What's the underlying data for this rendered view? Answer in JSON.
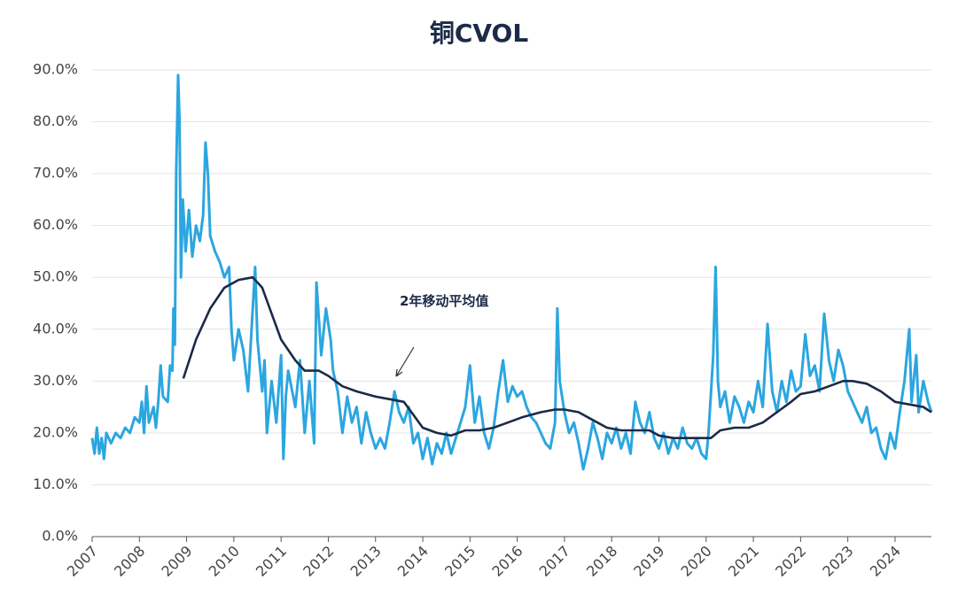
{
  "chart_data": {
    "type": "line",
    "title": "铜CVOL",
    "xlim": [
      2007,
      2024.77
    ],
    "xticks": [
      2007,
      2008,
      2009,
      2010,
      2011,
      2012,
      2013,
      2014,
      2015,
      2016,
      2017,
      2018,
      2019,
      2020,
      2021,
      2022,
      2023,
      2024
    ],
    "ylim": [
      0,
      90
    ],
    "yticks": [
      {
        "value": 0,
        "label": "0.0%"
      },
      {
        "value": 10,
        "label": "10.0%"
      },
      {
        "value": 20,
        "label": "20.0%"
      },
      {
        "value": 30,
        "label": "30.0%"
      },
      {
        "value": 40,
        "label": "40.0%"
      },
      {
        "value": 50,
        "label": "50.0%"
      },
      {
        "value": 60,
        "label": "60.0%"
      },
      {
        "value": 70,
        "label": "70.0%"
      },
      {
        "value": 80,
        "label": "80.0%"
      },
      {
        "value": 90,
        "label": "90.0%"
      }
    ],
    "grid": true,
    "annotation": "2年移动平均值",
    "series": [
      {
        "color": "#2ba6e0",
        "x": [
          2007.0,
          2007.05,
          2007.1,
          2007.15,
          2007.2,
          2007.25,
          2007.3,
          2007.4,
          2007.5,
          2007.6,
          2007.7,
          2007.8,
          2007.9,
          2008.0,
          2008.05,
          2008.1,
          2008.15,
          2008.2,
          2008.3,
          2008.35,
          2008.4,
          2008.45,
          2008.5,
          2008.6,
          2008.65,
          2008.7,
          2008.72,
          2008.75,
          2008.78,
          2008.82,
          2008.85,
          2008.88,
          2008.92,
          2008.98,
          2009.05,
          2009.12,
          2009.2,
          2009.28,
          2009.35,
          2009.4,
          2009.45,
          2009.5,
          2009.6,
          2009.7,
          2009.8,
          2009.9,
          2009.95,
          2010.0,
          2010.1,
          2010.2,
          2010.3,
          2010.4,
          2010.45,
          2010.5,
          2010.6,
          2010.65,
          2010.7,
          2010.8,
          2010.9,
          2011.0,
          2011.05,
          2011.1,
          2011.15,
          2011.3,
          2011.4,
          2011.5,
          2011.6,
          2011.7,
          2011.75,
          2011.85,
          2011.95,
          2012.05,
          2012.1,
          2012.2,
          2012.3,
          2012.4,
          2012.5,
          2012.6,
          2012.7,
          2012.8,
          2012.9,
          2013.0,
          2013.1,
          2013.2,
          2013.3,
          2013.4,
          2013.5,
          2013.6,
          2013.7,
          2013.8,
          2013.9,
          2014.0,
          2014.1,
          2014.2,
          2014.3,
          2014.4,
          2014.5,
          2014.6,
          2014.7,
          2014.8,
          2014.9,
          2015.0,
          2015.1,
          2015.2,
          2015.3,
          2015.4,
          2015.5,
          2015.6,
          2015.7,
          2015.8,
          2015.9,
          2016.0,
          2016.1,
          2016.2,
          2016.3,
          2016.4,
          2016.5,
          2016.6,
          2016.7,
          2016.8,
          2016.85,
          2016.9,
          2017.0,
          2017.1,
          2017.2,
          2017.3,
          2017.4,
          2017.5,
          2017.6,
          2017.7,
          2017.8,
          2017.9,
          2018.0,
          2018.1,
          2018.2,
          2018.3,
          2018.4,
          2018.5,
          2018.6,
          2018.7,
          2018.8,
          2018.9,
          2019.0,
          2019.1,
          2019.2,
          2019.3,
          2019.4,
          2019.5,
          2019.6,
          2019.7,
          2019.8,
          2019.9,
          2020.0,
          2020.05,
          2020.15,
          2020.2,
          2020.25,
          2020.3,
          2020.4,
          2020.5,
          2020.6,
          2020.7,
          2020.8,
          2020.9,
          2021.0,
          2021.1,
          2021.2,
          2021.3,
          2021.4,
          2021.5,
          2021.6,
          2021.7,
          2021.8,
          2021.9,
          2022.0,
          2022.1,
          2022.2,
          2022.3,
          2022.4,
          2022.5,
          2022.6,
          2022.7,
          2022.8,
          2022.9,
          2023.0,
          2023.1,
          2023.2,
          2023.3,
          2023.4,
          2023.5,
          2023.6,
          2023.7,
          2023.8,
          2023.9,
          2024.0,
          2024.1,
          2024.2,
          2024.3,
          2024.35,
          2024.45,
          2024.5,
          2024.6,
          2024.7,
          2024.77
        ],
        "values": [
          19,
          16,
          21,
          16,
          19,
          15,
          20,
          18,
          20,
          19,
          21,
          20,
          23,
          22,
          26,
          20,
          29,
          22,
          25,
          21,
          26,
          33,
          27,
          26,
          33,
          32,
          44,
          37,
          71,
          89,
          80,
          50,
          65,
          55,
          63,
          54,
          60,
          57,
          62,
          76,
          70,
          58,
          55,
          53,
          50,
          52,
          40,
          34,
          40,
          36,
          28,
          44,
          52,
          38,
          28,
          34,
          20,
          30,
          22,
          35,
          15,
          27,
          32,
          25,
          34,
          20,
          30,
          18,
          49,
          35,
          44,
          38,
          32,
          28,
          20,
          27,
          22,
          25,
          18,
          24,
          20,
          17,
          19,
          17,
          22,
          28,
          24,
          22,
          25,
          18,
          20,
          15,
          19,
          14,
          18,
          16,
          20,
          16,
          19,
          22,
          25,
          33,
          22,
          27,
          20,
          17,
          21,
          28,
          34,
          26,
          29,
          27,
          28,
          25,
          23,
          22,
          20,
          18,
          17,
          22,
          44,
          30,
          24,
          20,
          22,
          18,
          13,
          17,
          22,
          19,
          15,
          20,
          18,
          21,
          17,
          20,
          16,
          26,
          22,
          20,
          24,
          19,
          17,
          20,
          16,
          19,
          17,
          21,
          18,
          17,
          19,
          16,
          15,
          20,
          35,
          52,
          30,
          25,
          28,
          22,
          27,
          25,
          22,
          26,
          24,
          30,
          25,
          41,
          28,
          24,
          30,
          26,
          32,
          28,
          29,
          39,
          31,
          33,
          28,
          43,
          34,
          30,
          36,
          33,
          28,
          26,
          24,
          22,
          25,
          20,
          21,
          17,
          15,
          20,
          17,
          24,
          30,
          40,
          26,
          35,
          24,
          30,
          26,
          24
        ]
      },
      {
        "color": "#1b2a47",
        "x": [
          2008.93,
          2009.2,
          2009.5,
          2009.8,
          2010.1,
          2010.4,
          2010.6,
          2010.8,
          2011.0,
          2011.3,
          2011.5,
          2011.8,
          2012.0,
          2012.3,
          2012.6,
          2013.0,
          2013.3,
          2013.6,
          2013.8,
          2014.0,
          2014.3,
          2014.6,
          2014.9,
          2015.2,
          2015.5,
          2015.8,
          2016.1,
          2016.5,
          2016.8,
          2017.0,
          2017.3,
          2017.6,
          2017.9,
          2018.2,
          2018.5,
          2018.8,
          2019.0,
          2019.3,
          2019.6,
          2019.9,
          2020.1,
          2020.3,
          2020.6,
          2020.9,
          2021.2,
          2021.5,
          2021.8,
          2022.0,
          2022.3,
          2022.6,
          2022.9,
          2023.1,
          2023.4,
          2023.7,
          2024.0,
          2024.3,
          2024.6,
          2024.77
        ],
        "values": [
          30.5,
          38,
          44,
          48,
          49.5,
          50,
          48,
          43,
          38,
          34,
          32,
          32,
          31,
          29,
          28,
          27,
          26.5,
          26,
          23.5,
          21,
          20,
          19.5,
          20.5,
          20.5,
          21,
          22,
          23,
          24,
          24.5,
          24.5,
          24,
          22.5,
          21,
          20.5,
          20.5,
          20.5,
          19.5,
          19,
          19,
          19,
          19,
          20.5,
          21,
          21,
          22,
          24,
          26,
          27.5,
          28,
          29,
          30,
          30,
          29.5,
          28,
          26,
          25.5,
          25,
          24
        ]
      }
    ]
  }
}
